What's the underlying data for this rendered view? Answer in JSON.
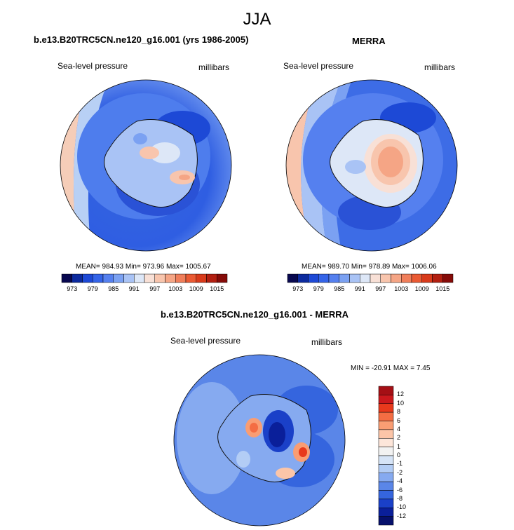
{
  "season_title": "JJA",
  "panels": {
    "model": {
      "title": "b.e13.B20TRC5CN.ne120_g16.001 (yrs 1986-2005)",
      "left_label": "Sea-level pressure",
      "right_label": "millibars",
      "stats": "MEAN= 984.93  Min= 973.96  Max= 1005.67"
    },
    "obs": {
      "title": "MERRA",
      "left_label": "Sea-level pressure",
      "right_label": "millibars",
      "stats": "MEAN= 989.70  Min= 978.89  Max= 1006.06"
    },
    "diff": {
      "title": "b.e13.B20TRC5CN.ne120_g16.001 - MERRA",
      "left_label": "Sea-level pressure",
      "right_label": "millibars",
      "stats": "MIN = -20.91  MAX =   7.45"
    }
  },
  "colorbars": {
    "abs_labels": [
      "973",
      "979",
      "985",
      "991",
      "997",
      "1003",
      "1009",
      "1015"
    ],
    "abs_colors": [
      "#08084f",
      "#0c2a9e",
      "#1d49d6",
      "#3464e8",
      "#5580ef",
      "#7ba1f2",
      "#a9c3f5",
      "#dde7f7",
      "#f8e0d6",
      "#f8c5ad",
      "#f5a585",
      "#f07e5a",
      "#ea5a33",
      "#d83a1a",
      "#b21f10",
      "#850b08"
    ],
    "diff_labels": [
      "12",
      "10",
      "8",
      "6",
      "4",
      "2",
      "1",
      "0",
      "-1",
      "-2",
      "-4",
      "-6",
      "-8",
      "-10",
      "-12"
    ],
    "diff_colors": [
      "#a50f15",
      "#cb181d",
      "#e8391c",
      "#f46d43",
      "#f99d73",
      "#fcc5a8",
      "#fde6da",
      "#f2f2f2",
      "#d6e4f7",
      "#b3cdf5",
      "#86aaf0",
      "#5a86e8",
      "#3565de",
      "#1a40c8",
      "#0a1f9a",
      "#06106b"
    ]
  }
}
